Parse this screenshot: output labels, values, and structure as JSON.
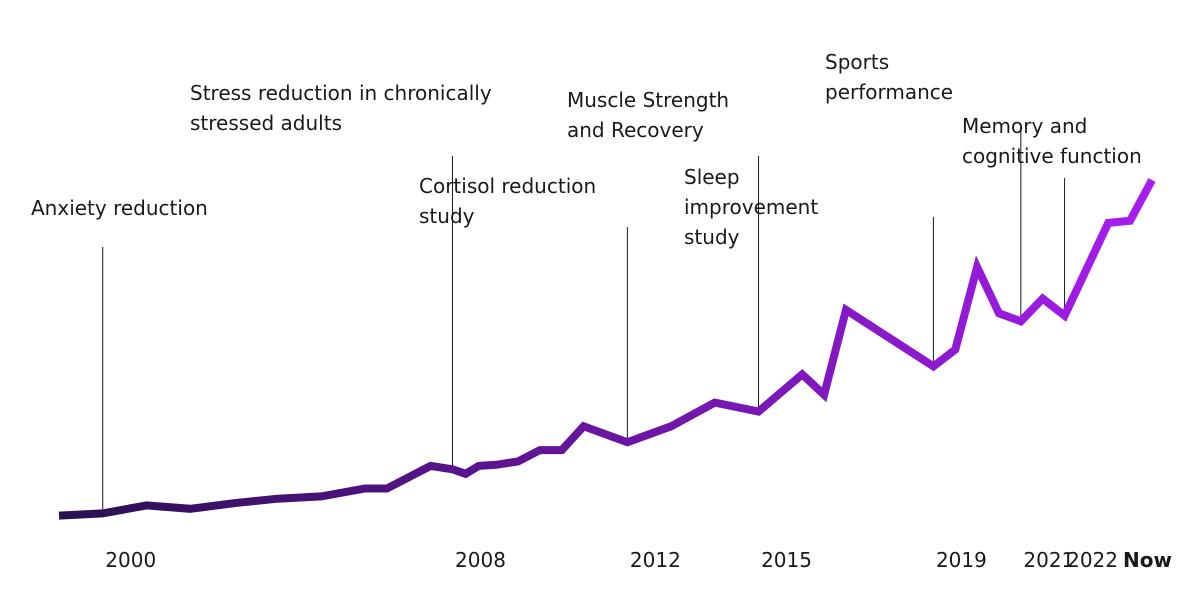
{
  "chart_data": {
    "type": "line",
    "title": "",
    "xlabel": "",
    "ylabel": "",
    "grid": false,
    "legend": "none",
    "colors": {
      "start": "#2a0f52",
      "end": "#a81cf0",
      "text": "#1a1a1a"
    },
    "series": [
      {
        "values": [
          [
            1999.0,
            3
          ],
          [
            2000.0,
            5
          ],
          [
            2001.0,
            12
          ],
          [
            2002.0,
            9
          ],
          [
            2003.0,
            14
          ],
          [
            2004.0,
            18
          ],
          [
            2005.0,
            20
          ],
          [
            2006.0,
            27
          ],
          [
            2006.5,
            27
          ],
          [
            2007.5,
            47
          ],
          [
            2008.0,
            44
          ],
          [
            2008.3,
            40
          ],
          [
            2008.6,
            47
          ],
          [
            2009.0,
            48
          ],
          [
            2009.5,
            51
          ],
          [
            2010.0,
            61
          ],
          [
            2010.5,
            61
          ],
          [
            2011.0,
            82
          ],
          [
            2012.0,
            68
          ],
          [
            2013.0,
            82
          ],
          [
            2014.0,
            103
          ],
          [
            2015.0,
            95
          ],
          [
            2016.0,
            128
          ],
          [
            2016.5,
            110
          ],
          [
            2017.0,
            185
          ],
          [
            2019.0,
            135
          ],
          [
            2019.5,
            150
          ],
          [
            2020.0,
            223
          ],
          [
            2020.5,
            182
          ],
          [
            2021.0,
            175
          ],
          [
            2021.5,
            195
          ],
          [
            2022.0,
            180
          ],
          [
            2023.0,
            262
          ],
          [
            2023.5,
            264
          ],
          [
            2024.0,
            300
          ]
        ]
      }
    ],
    "xlim": [
      1999.0,
      2024.0
    ],
    "ylim": [
      0,
      300
    ],
    "ticks": [
      {
        "x": 2000.0,
        "label": "2000",
        "bold": false
      },
      {
        "x": 2008.0,
        "label": "2008",
        "bold": false
      },
      {
        "x": 2012.0,
        "label": "2012",
        "bold": false
      },
      {
        "x": 2015.0,
        "label": "2015",
        "bold": false
      },
      {
        "x": 2019.0,
        "label": "2019",
        "bold": false
      },
      {
        "x": 2021.0,
        "label": "2021",
        "bold": false
      },
      {
        "x": 2022.0,
        "label": "2022",
        "bold": false
      },
      {
        "x": 2024.0,
        "label": "Now",
        "bold": true
      }
    ],
    "annotations": [
      {
        "x": 2000.0,
        "lines": [
          "Anxiety reduction"
        ]
      },
      {
        "x": 2008.0,
        "lines": [
          "Stress reduction in chronically",
          "stressed adults"
        ]
      },
      {
        "x": 2012.0,
        "lines": [
          "Cortisol reduction",
          "study"
        ]
      },
      {
        "x": 2015.0,
        "lines": [
          "Muscle Strength",
          "and Recovery"
        ]
      },
      {
        "x": 2019.0,
        "lines": [
          "Sleep",
          "improvement",
          "study"
        ]
      },
      {
        "x": 2021.0,
        "lines": [
          "Sports",
          "performance"
        ]
      },
      {
        "x": 2022.0,
        "lines": [
          "Memory and",
          "cognitive function"
        ]
      }
    ]
  }
}
